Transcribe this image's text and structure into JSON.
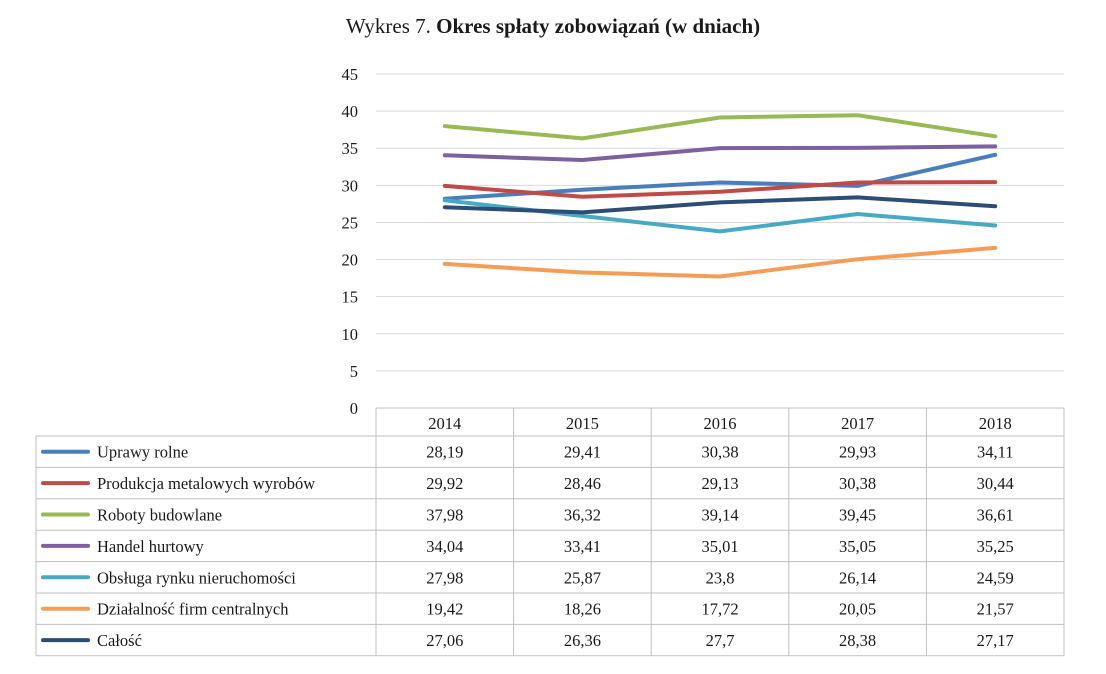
{
  "title": {
    "prefix": "Wykres 7.",
    "main": "Okres spłaty zobowiązań (w dniach)"
  },
  "chart_data": {
    "type": "line",
    "title": "Wykres 7. Okres spłaty zobowiązań (w dniach)",
    "categories": [
      "2014",
      "2015",
      "2016",
      "2017",
      "2018"
    ],
    "ylim": [
      0,
      45
    ],
    "yticks": [
      0,
      5,
      10,
      15,
      20,
      25,
      30,
      35,
      40,
      45
    ],
    "grid": true,
    "legend": "data-table-below",
    "series": [
      {
        "name": "Uprawy rolne",
        "color": "#4a7ebb",
        "values": [
          "28,19",
          "29,41",
          "30,38",
          "29,93",
          "34,11"
        ]
      },
      {
        "name": "Produkcja metalowych wyrobów",
        "color": "#be4b48",
        "values": [
          "29,92",
          "28,46",
          "29,13",
          "30,38",
          "30,44"
        ]
      },
      {
        "name": "Roboty budowlane",
        "color": "#98b954",
        "values": [
          "37,98",
          "36,32",
          "39,14",
          "39,45",
          "36,61"
        ]
      },
      {
        "name": "Handel hurtowy",
        "color": "#7d60a0",
        "values": [
          "34,04",
          "33,41",
          "35,01",
          "35,05",
          "35,25"
        ]
      },
      {
        "name": "Obsługa rynku nieruchomości",
        "color": "#46aac5",
        "values": [
          "27,98",
          "25,87",
          "23,8",
          "26,14",
          "24,59"
        ]
      },
      {
        "name": "Działalność firm centralnych",
        "color": "#f59d56",
        "values": [
          "19,42",
          "18,26",
          "17,72",
          "20,05",
          "21,57"
        ]
      },
      {
        "name": "Całość",
        "color": "#2c4d75",
        "values": [
          "27,06",
          "26,36",
          "27,7",
          "28,38",
          "27,17"
        ]
      }
    ]
  }
}
